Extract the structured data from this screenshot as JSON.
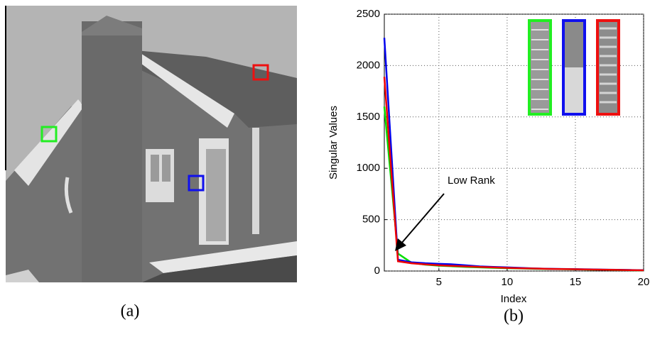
{
  "captions": [
    "(a)",
    "(b)"
  ],
  "chart_data": {
    "type": "line",
    "y_label": "Singular Values",
    "x_label": "Index",
    "annotation": "Low Rank",
    "x": [
      1,
      2,
      3,
      4,
      5,
      6,
      7,
      8,
      9,
      10,
      11,
      12,
      13,
      14,
      15,
      16,
      17,
      18,
      19,
      20
    ],
    "series": [
      {
        "color": "#00dd00",
        "values": [
          1600,
          170,
          80,
          62,
          52,
          46,
          40,
          35,
          31,
          28,
          25,
          22,
          20,
          18,
          16,
          14,
          12,
          10,
          8,
          6
        ]
      },
      {
        "color": "#0000ee",
        "values": [
          2270,
          110,
          85,
          76,
          70,
          65,
          55,
          45,
          40,
          35,
          30,
          25,
          22,
          20,
          18,
          16,
          14,
          12,
          10,
          8
        ]
      },
      {
        "color": "#ee0000",
        "values": [
          1890,
          95,
          75,
          65,
          56,
          50,
          45,
          40,
          35,
          30,
          27,
          24,
          21,
          19,
          17,
          15,
          13,
          11,
          9,
          7
        ]
      }
    ],
    "xlim": [
      1,
      20
    ],
    "xticks": [
      5,
      10,
      15,
      20
    ],
    "ylim": [
      0,
      2500
    ],
    "yticks": [
      0,
      500,
      1000,
      1500,
      2000,
      2500
    ],
    "grid": true
  }
}
